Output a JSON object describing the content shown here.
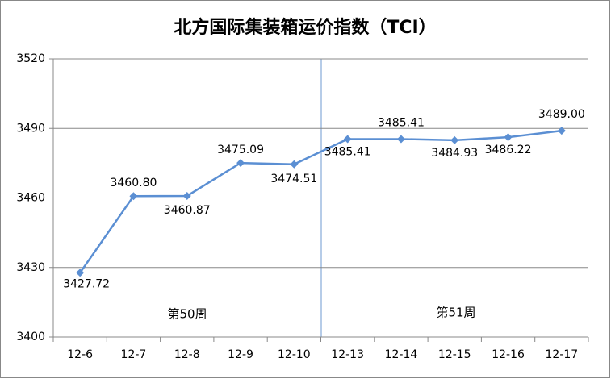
{
  "chart_data": {
    "type": "line",
    "title": "北方国际集装箱运价指数（TCI）",
    "categories": [
      "12-6",
      "12-7",
      "12-8",
      "12-9",
      "12-10",
      "12-13",
      "12-14",
      "12-15",
      "12-16",
      "12-17"
    ],
    "series": [
      {
        "color": "#5b8fd3",
        "values": [
          3427.72,
          3460.8,
          3460.87,
          3475.09,
          3474.51,
          3485.41,
          3485.41,
          3484.93,
          3486.22,
          3489.0
        ],
        "value_labels": [
          "3427.72",
          "3460.80",
          "3460.87",
          "3475.09",
          "3474.51",
          "3485.41",
          "3485.41",
          "3484.93",
          "3486.22",
          "3489.00"
        ]
      }
    ],
    "ylim": [
      3400,
      3520
    ],
    "yticks": [
      3400,
      3430,
      3460,
      3490,
      3520
    ],
    "grid": true,
    "annotations": [
      "第50周",
      "第51周"
    ]
  }
}
